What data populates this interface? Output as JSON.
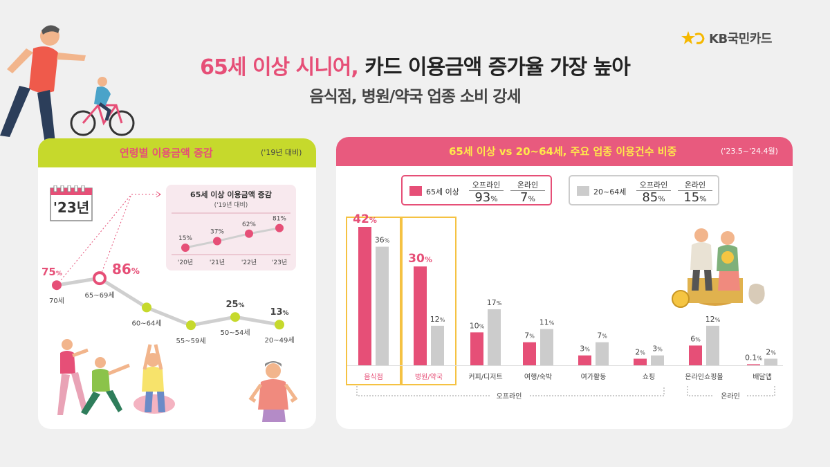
{
  "brand": {
    "name": "KB국민카드",
    "accent": "#e64f77",
    "yellow": "#f5b800"
  },
  "header": {
    "title_accent": "65세 이상 시니어,",
    "title_rest": " 카드 이용금액 증가율 가장 높아",
    "subtitle": "음식점, 병원/약국 업종 소비 강세"
  },
  "left_panel": {
    "title": "연령별 이용금액 증감",
    "note": "('19년 대비)",
    "calendar_label": "'23년"
  },
  "right_panel": {
    "title": "65세 이상 vs 20~64세, 주요 업종 이용건수 비중",
    "note": "('23.5~'24.4월)",
    "legend_senior": {
      "label": "65세 이상",
      "offline_head": "오프라인",
      "offline_val": "93",
      "online_head": "온라인",
      "online_val": "7",
      "unit": "%"
    },
    "legend_young": {
      "label": "20~64세",
      "offline_head": "오프라인",
      "offline_val": "85",
      "online_head": "온라인",
      "online_val": "15",
      "unit": "%"
    },
    "group_offline": "오프라인",
    "group_online": "온라인"
  },
  "chart_data": [
    {
      "type": "line",
      "title": "",
      "categories": [
        "70세",
        "65~69세",
        "60~64세",
        "55~59세",
        "50~54세",
        "20~49세"
      ],
      "values": [
        75,
        86,
        40,
        12,
        25,
        13
      ],
      "value_labels": [
        "75",
        "86",
        "",
        "",
        "25",
        "13"
      ],
      "unit": "%",
      "highlight_colors": [
        "#e64f77",
        "#e64f77",
        "#c6d92c",
        "#c6d92c",
        "#c6d92c",
        "#c6d92c"
      ]
    },
    {
      "type": "line",
      "title": "65세 이상 이용금액 증감",
      "subtitle": "('19년 대비)",
      "categories": [
        "'20년",
        "'21년",
        "'22년",
        "'23년"
      ],
      "values": [
        15,
        37,
        62,
        81
      ],
      "unit": "%"
    },
    {
      "type": "bar",
      "categories": [
        "음식점",
        "병원/약국",
        "커피/디저트",
        "여행/숙박",
        "여가활동",
        "쇼핑",
        "온라인쇼핑몰",
        "배달앱"
      ],
      "highlighted": [
        "음식점",
        "병원/약국"
      ],
      "series": [
        {
          "name": "65세 이상",
          "color": "#e64f77",
          "values": [
            42,
            30,
            10,
            7,
            3,
            2,
            6,
            0.1
          ],
          "labels": [
            "42",
            "30",
            "10",
            "7",
            "3",
            "2",
            "6",
            "0.1"
          ]
        },
        {
          "name": "20~64세",
          "color": "#cccccc",
          "values": [
            36,
            12,
            17,
            11,
            7,
            3,
            12,
            2
          ],
          "labels": [
            "36",
            "12",
            "17",
            "11",
            "7",
            "3",
            "12",
            "2"
          ]
        }
      ],
      "unit": "%",
      "ylim": [
        0,
        45
      ]
    }
  ]
}
